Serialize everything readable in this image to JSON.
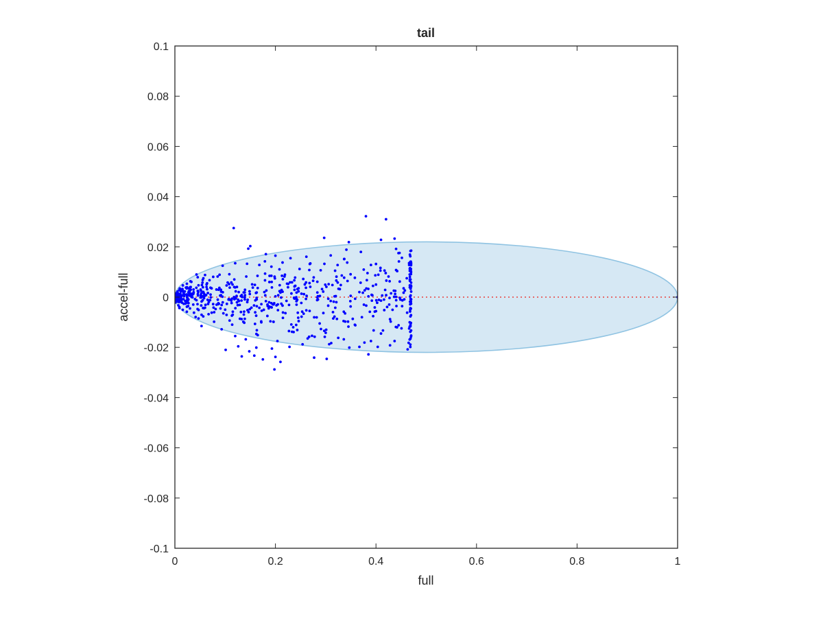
{
  "chart_data": {
    "type": "scatter",
    "title": "tail",
    "xlabel": "full",
    "ylabel": "accel-full",
    "xlim": [
      0,
      1
    ],
    "ylim": [
      -0.1,
      0.1
    ],
    "xticks": [
      0,
      0.2,
      0.4,
      0.6,
      0.8,
      1
    ],
    "xtick_labels": [
      "0",
      "0.2",
      "0.4",
      "0.6",
      "0.8",
      "1"
    ],
    "yticks": [
      -0.1,
      -0.08,
      -0.06,
      -0.04,
      -0.02,
      0,
      0.02,
      0.04,
      0.06,
      0.08,
      0.1
    ],
    "ytick_labels": [
      "-0.1",
      "-0.08",
      "-0.06",
      "-0.04",
      "-0.02",
      "0",
      "0.02",
      "0.04",
      "0.06",
      "0.08",
      "0.1"
    ],
    "grid": false,
    "colors": {
      "points": "#0000ff",
      "ellipse_fill": "#d6e8f4",
      "ellipse_edge": "#8fc3e2",
      "reference_line": "#e8413c",
      "axes": "#262626"
    },
    "ellipse": {
      "center": [
        0.5,
        0
      ],
      "semi_axes": [
        0.5,
        0.022
      ]
    },
    "reference_line": {
      "y": 0,
      "x_range": [
        0,
        1
      ],
      "style": "dotted"
    },
    "point_cloud": {
      "point_count": 620,
      "x_range": [
        0,
        0.47
      ],
      "y_range": [
        -0.029,
        0.032
      ],
      "notes_visible": "points concentrated near x=0 with spread widening toward x≈0.47; one point at (1, 0)"
    },
    "points": [
      [
        0.117,
        0.0275
      ],
      [
        0.38,
        0.0322
      ],
      [
        0.42,
        0.031
      ],
      [
        0.297,
        0.0236
      ],
      [
        0.437,
        0.0233
      ],
      [
        0.41,
        0.0228
      ],
      [
        0.346,
        0.0219
      ],
      [
        0.15,
        0.0203
      ],
      [
        0.146,
        0.0193
      ],
      [
        0.181,
        0.0171
      ],
      [
        0.2,
        0.0165
      ],
      [
        0.31,
        0.0166
      ],
      [
        0.37,
        0.018
      ],
      [
        0.44,
        0.0192
      ],
      [
        0.47,
        0.0185
      ],
      [
        0.23,
        0.0155
      ],
      [
        0.12,
        0.0135
      ],
      [
        0.337,
        0.0152
      ],
      [
        0.4,
        0.0132
      ],
      [
        0.39,
        0.0128
      ],
      [
        0.168,
        0.0128
      ],
      [
        0.095,
        0.0125
      ],
      [
        0.248,
        0.0112
      ],
      [
        0.29,
        0.0107
      ],
      [
        0.44,
        0.0108
      ],
      [
        0.466,
        0.0128
      ],
      [
        0.043,
        0.009
      ],
      [
        0.06,
        0.0088
      ],
      [
        0.085,
        0.0082
      ],
      [
        0.142,
        0.0082
      ],
      [
        0.213,
        0.0085
      ],
      [
        0.332,
        0.0086
      ],
      [
        0.425,
        0.0082
      ],
      [
        0.358,
        0.0077
      ],
      [
        0.275,
        0.0065
      ],
      [
        0.188,
        0.006
      ],
      [
        0.105,
        0.0058
      ],
      [
        0.064,
        0.0055
      ],
      [
        0.031,
        0.0063
      ],
      [
        0.047,
        0.0047
      ],
      [
        0.33,
        0.0048
      ],
      [
        0.4,
        0.005
      ],
      [
        0.455,
        0.0035
      ],
      [
        0.246,
        0.0035
      ],
      [
        0.155,
        0.0038
      ],
      [
        0.073,
        0.0035
      ],
      [
        0.022,
        0.0038
      ],
      [
        0.015,
        0.0032
      ],
      [
        0.01,
        0.0028
      ],
      [
        0.005,
        0.0022
      ],
      [
        0.028,
        0.0024
      ],
      [
        0.052,
        0.0025
      ],
      [
        0.092,
        0.0022
      ],
      [
        0.121,
        0.0023
      ],
      [
        0.178,
        0.002
      ],
      [
        0.21,
        0.0018
      ],
      [
        0.295,
        0.0022
      ],
      [
        0.367,
        0.002
      ],
      [
        0.43,
        0.0015
      ],
      [
        0.47,
        0.0022
      ],
      [
        0.003,
        0.0015
      ],
      [
        0.008,
        0.0012
      ],
      [
        0.018,
        0.0011
      ],
      [
        0.035,
        0.001
      ],
      [
        0.062,
        0.0008
      ],
      [
        0.09,
        0.0006
      ],
      [
        0.133,
        0.0008
      ],
      [
        0.2,
        0.0003
      ],
      [
        0.262,
        0.0005
      ],
      [
        0.32,
        0.0004
      ],
      [
        0.385,
        0.0003
      ],
      [
        0.44,
        0.0001
      ],
      [
        0.002,
        0.0
      ],
      [
        0.006,
        -0.0003
      ],
      [
        0.012,
        -0.0006
      ],
      [
        0.025,
        -0.0005
      ],
      [
        0.04,
        -0.0008
      ],
      [
        0.07,
        -0.0012
      ],
      [
        0.11,
        -0.0011
      ],
      [
        0.16,
        -0.0013
      ],
      [
        0.222,
        -0.0015
      ],
      [
        0.283,
        -0.0012
      ],
      [
        0.349,
        -0.0016
      ],
      [
        0.41,
        -0.0014
      ],
      [
        0.468,
        -0.0018
      ],
      [
        0.004,
        -0.0018
      ],
      [
        0.014,
        -0.0022
      ],
      [
        0.021,
        -0.0026
      ],
      [
        0.045,
        -0.0028
      ],
      [
        0.083,
        -0.003
      ],
      [
        0.125,
        -0.0032
      ],
      [
        0.172,
        -0.0028
      ],
      [
        0.242,
        -0.003
      ],
      [
        0.305,
        -0.0034
      ],
      [
        0.376,
        -0.003
      ],
      [
        0.452,
        -0.0036
      ],
      [
        0.009,
        -0.004
      ],
      [
        0.03,
        -0.0045
      ],
      [
        0.058,
        -0.0044
      ],
      [
        0.1,
        -0.005
      ],
      [
        0.149,
        -0.0048
      ],
      [
        0.205,
        -0.0052
      ],
      [
        0.268,
        -0.0055
      ],
      [
        0.336,
        -0.0058
      ],
      [
        0.4,
        -0.0056
      ],
      [
        0.462,
        -0.0062
      ],
      [
        0.038,
        -0.0062
      ],
      [
        0.067,
        -0.0068
      ],
      [
        0.115,
        -0.007
      ],
      [
        0.184,
        -0.0075
      ],
      [
        0.252,
        -0.0078
      ],
      [
        0.315,
        -0.0085
      ],
      [
        0.372,
        -0.008
      ],
      [
        0.428,
        -0.0088
      ],
      [
        0.047,
        -0.0085
      ],
      [
        0.078,
        -0.0098
      ],
      [
        0.138,
        -0.0102
      ],
      [
        0.196,
        -0.0098
      ],
      [
        0.288,
        -0.0105
      ],
      [
        0.358,
        -0.011
      ],
      [
        0.445,
        -0.0112
      ],
      [
        0.466,
        -0.0125
      ],
      [
        0.093,
        -0.0128
      ],
      [
        0.163,
        -0.0132
      ],
      [
        0.233,
        -0.0138
      ],
      [
        0.3,
        -0.0142
      ],
      [
        0.41,
        -0.0145
      ],
      [
        0.053,
        -0.0115
      ],
      [
        0.12,
        -0.0155
      ],
      [
        0.267,
        -0.0158
      ],
      [
        0.336,
        -0.0168
      ],
      [
        0.39,
        -0.0175
      ],
      [
        0.437,
        -0.0175
      ],
      [
        0.465,
        -0.0182
      ],
      [
        0.141,
        -0.0168
      ],
      [
        0.204,
        -0.0175
      ],
      [
        0.311,
        -0.0183
      ],
      [
        0.428,
        -0.0192
      ],
      [
        0.367,
        -0.0198
      ],
      [
        0.254,
        -0.0188
      ],
      [
        0.126,
        -0.0196
      ],
      [
        0.162,
        -0.0201
      ],
      [
        0.228,
        -0.0198
      ],
      [
        0.347,
        -0.0201
      ],
      [
        0.463,
        -0.0208
      ],
      [
        0.101,
        -0.021
      ],
      [
        0.148,
        -0.0216
      ],
      [
        0.193,
        -0.0205
      ],
      [
        0.385,
        -0.0228
      ],
      [
        0.158,
        -0.0233
      ],
      [
        0.277,
        -0.0241
      ],
      [
        0.302,
        -0.0246
      ],
      [
        0.133,
        -0.0236
      ],
      [
        0.2,
        -0.0238
      ],
      [
        0.175,
        -0.0248
      ],
      [
        0.21,
        -0.0258
      ],
      [
        0.198,
        -0.0288
      ],
      [
        1.0,
        0.0
      ]
    ]
  }
}
